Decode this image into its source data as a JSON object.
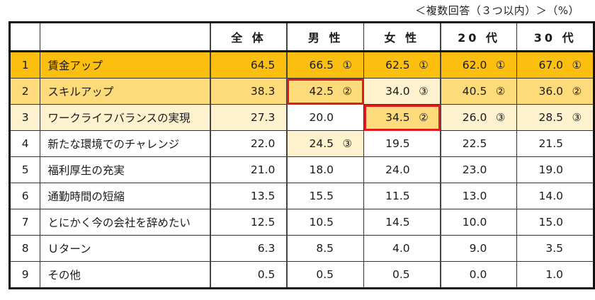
{
  "note": "＜複数回答（３つ以内）＞（%）",
  "columns": [
    "全体",
    "男性",
    "女性",
    "20代",
    "30代"
  ],
  "column_labels": [
    "全 体",
    "男 性",
    "女 性",
    "20 代",
    "30 代"
  ],
  "rows": [
    {
      "no": "1",
      "label": "賃金アップ",
      "cells": [
        {
          "v": "64.5",
          "rank": "",
          "bg": "r1"
        },
        {
          "v": "66.5",
          "rank": "①",
          "bg": "r1"
        },
        {
          "v": "62.5",
          "rank": "①",
          "bg": "r1"
        },
        {
          "v": "62.0",
          "rank": "①",
          "bg": "r1"
        },
        {
          "v": "67.0",
          "rank": "①",
          "bg": "r1"
        }
      ],
      "row_bg": "r1"
    },
    {
      "no": "2",
      "label": "スキルアップ",
      "cells": [
        {
          "v": "38.3",
          "rank": "",
          "bg": "r2"
        },
        {
          "v": "42.5",
          "rank": "②",
          "bg": "r2",
          "highlight": true
        },
        {
          "v": "34.0",
          "rank": "③",
          "bg": "r3"
        },
        {
          "v": "40.5",
          "rank": "②",
          "bg": "r2"
        },
        {
          "v": "36.0",
          "rank": "②",
          "bg": "r2"
        }
      ],
      "row_bg": "r2"
    },
    {
      "no": "3",
      "label": "ワークライフバランスの実現",
      "cells": [
        {
          "v": "27.3",
          "rank": "",
          "bg": "r3"
        },
        {
          "v": "20.0",
          "rank": "",
          "bg": "w"
        },
        {
          "v": "34.5",
          "rank": "②",
          "bg": "r2",
          "highlight": true
        },
        {
          "v": "26.0",
          "rank": "③",
          "bg": "r3"
        },
        {
          "v": "28.5",
          "rank": "③",
          "bg": "r3"
        }
      ],
      "row_bg": "r3"
    },
    {
      "no": "4",
      "label": "新たな環境でのチャレンジ",
      "cells": [
        {
          "v": "22.0",
          "rank": "",
          "bg": "w"
        },
        {
          "v": "24.5",
          "rank": "③",
          "bg": "r3"
        },
        {
          "v": "19.5",
          "rank": "",
          "bg": "w"
        },
        {
          "v": "22.5",
          "rank": "",
          "bg": "w"
        },
        {
          "v": "21.5",
          "rank": "",
          "bg": "w"
        }
      ],
      "row_bg": "w"
    },
    {
      "no": "5",
      "label": "福利厚生の充実",
      "cells": [
        {
          "v": "21.0",
          "rank": "",
          "bg": "w"
        },
        {
          "v": "18.0",
          "rank": "",
          "bg": "w"
        },
        {
          "v": "24.0",
          "rank": "",
          "bg": "w"
        },
        {
          "v": "23.0",
          "rank": "",
          "bg": "w"
        },
        {
          "v": "19.0",
          "rank": "",
          "bg": "w"
        }
      ],
      "row_bg": "w"
    },
    {
      "no": "6",
      "label": "通勤時間の短縮",
      "cells": [
        {
          "v": "13.5",
          "rank": "",
          "bg": "w"
        },
        {
          "v": "15.5",
          "rank": "",
          "bg": "w"
        },
        {
          "v": "11.5",
          "rank": "",
          "bg": "w"
        },
        {
          "v": "13.0",
          "rank": "",
          "bg": "w"
        },
        {
          "v": "14.0",
          "rank": "",
          "bg": "w"
        }
      ],
      "row_bg": "w"
    },
    {
      "no": "7",
      "label": "とにかく今の会社を辞めたい",
      "cells": [
        {
          "v": "12.5",
          "rank": "",
          "bg": "w"
        },
        {
          "v": "10.5",
          "rank": "",
          "bg": "w"
        },
        {
          "v": "14.5",
          "rank": "",
          "bg": "w"
        },
        {
          "v": "10.0",
          "rank": "",
          "bg": "w"
        },
        {
          "v": "15.0",
          "rank": "",
          "bg": "w"
        }
      ],
      "row_bg": "w"
    },
    {
      "no": "8",
      "label": "Ｕターン",
      "cells": [
        {
          "v": "6.3",
          "rank": "",
          "bg": "w"
        },
        {
          "v": "8.5",
          "rank": "",
          "bg": "w"
        },
        {
          "v": "4.0",
          "rank": "",
          "bg": "w"
        },
        {
          "v": "9.0",
          "rank": "",
          "bg": "w"
        },
        {
          "v": "3.5",
          "rank": "",
          "bg": "w"
        }
      ],
      "row_bg": "w"
    },
    {
      "no": "9",
      "label": "その他",
      "cells": [
        {
          "v": "0.5",
          "rank": "",
          "bg": "w"
        },
        {
          "v": "0.5",
          "rank": "",
          "bg": "w"
        },
        {
          "v": "0.5",
          "rank": "",
          "bg": "w"
        },
        {
          "v": "0.0",
          "rank": "",
          "bg": "w"
        },
        {
          "v": "1.0",
          "rank": "",
          "bg": "w"
        }
      ],
      "row_bg": "w"
    }
  ],
  "colors": {
    "rank1": "#fdbf0f",
    "rank2": "#fedb7a",
    "rank3": "#fef1cd",
    "highlight_border": "#e01b1b"
  },
  "chart_data": {
    "type": "table",
    "title": "",
    "note": "＜複数回答（３つ以内）＞（%）",
    "unit": "%",
    "columns": [
      "全体",
      "男性",
      "女性",
      "20代",
      "30代"
    ],
    "categories": [
      "賃金アップ",
      "スキルアップ",
      "ワークライフバランスの実現",
      "新たな環境でのチャレンジ",
      "福利厚生の充実",
      "通勤時間の短縮",
      "とにかく今の会社を辞めたい",
      "Ｕターン",
      "その他"
    ],
    "series": [
      {
        "name": "全体",
        "values": [
          64.5,
          38.3,
          27.3,
          22.0,
          21.0,
          13.5,
          12.5,
          6.3,
          0.5
        ]
      },
      {
        "name": "男性",
        "values": [
          66.5,
          42.5,
          20.0,
          24.5,
          18.0,
          15.5,
          10.5,
          8.5,
          0.5
        ],
        "ranks": {
          "賃金アップ": 1,
          "スキルアップ": 2,
          "新たな環境でのチャレンジ": 3
        }
      },
      {
        "name": "女性",
        "values": [
          62.5,
          34.0,
          34.5,
          19.5,
          24.0,
          11.5,
          14.5,
          4.0,
          0.5
        ],
        "ranks": {
          "賃金アップ": 1,
          "ワークライフバランスの実現": 2,
          "スキルアップ": 3
        }
      },
      {
        "name": "20代",
        "values": [
          62.0,
          40.5,
          26.0,
          22.5,
          23.0,
          13.0,
          10.0,
          9.0,
          0.0
        ],
        "ranks": {
          "賃金アップ": 1,
          "スキルアップ": 2,
          "ワークライフバランスの実現": 3
        }
      },
      {
        "name": "30代",
        "values": [
          67.0,
          36.0,
          28.5,
          21.5,
          19.0,
          14.0,
          15.0,
          3.5,
          1.0
        ],
        "ranks": {
          "賃金アップ": 1,
          "スキルアップ": 2,
          "ワークライフバランスの実現": 3
        }
      }
    ],
    "highlighted_cells": [
      {
        "row": "スキルアップ",
        "column": "男性"
      },
      {
        "row": "ワークライフバランスの実現",
        "column": "女性"
      }
    ]
  }
}
